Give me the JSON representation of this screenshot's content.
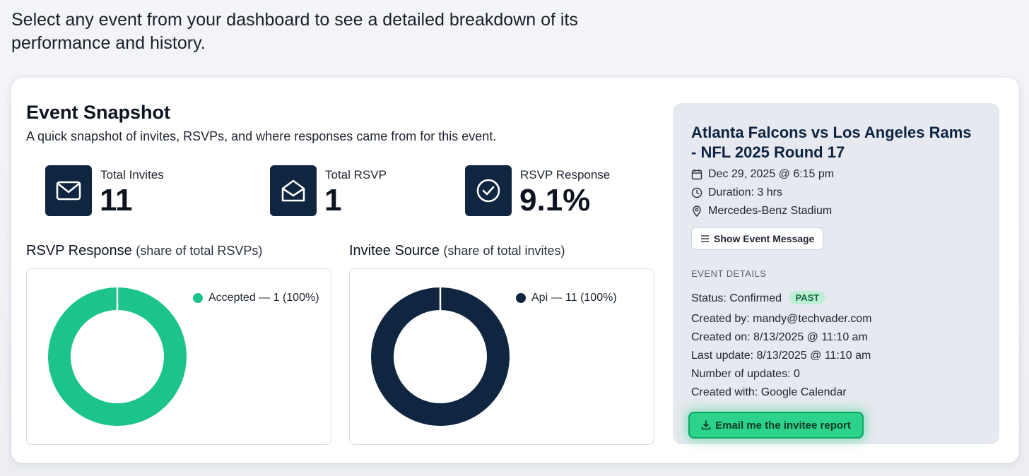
{
  "intro_text": "Select any event from your dashboard to see a detailed breakdown of its performance and history.",
  "snapshot": {
    "title": "Event Snapshot",
    "subtitle": "A quick snapshot of invites, RSVPs, and where responses came from for this event.",
    "stats": [
      {
        "label": "Total Invites",
        "value": "11",
        "icon": "mail-icon"
      },
      {
        "label": "Total RSVP",
        "value": "1",
        "icon": "open-mail-icon"
      },
      {
        "label": "RSVP Response",
        "value": "9.1%",
        "icon": "check-circle-icon"
      }
    ]
  },
  "charts": {
    "rsvp": {
      "title": "RSVP Response",
      "subtitle": "(share of total RSVPs)"
    },
    "source": {
      "title": "Invitee Source",
      "subtitle": "(share of total invites)"
    }
  },
  "chart_data": [
    {
      "type": "pie",
      "title": "RSVP Response",
      "categories": [
        "Accepted"
      ],
      "values": [
        1
      ],
      "legend": [
        "Accepted — 1 (100%)"
      ],
      "colors": [
        "#1dc489"
      ],
      "legend_position": "top-right"
    },
    {
      "type": "pie",
      "title": "Invitee Source",
      "categories": [
        "Api"
      ],
      "values": [
        11
      ],
      "legend": [
        "Api — 11 (100%)"
      ],
      "colors": [
        "#0f2540"
      ],
      "legend_position": "top-right"
    }
  ],
  "event": {
    "title": "Atlanta Falcons vs Los Angeles Rams - NFL 2025 Round 17",
    "date": "Dec 29, 2025 @ 6:15 pm",
    "duration": "Duration: 3 hrs",
    "location": "Mercedes-Benz Stadium",
    "show_message_label": "Show Event Message",
    "details_heading": "EVENT DETAILS",
    "status": "Status: Confirmed",
    "status_badge": "PAST",
    "created_by": "Created by: mandy@techvader.com",
    "created_on": "Created on: 8/13/2025 @ 11:10 am",
    "last_update": "Last update: 8/13/2025 @ 11:10 am",
    "num_updates": "Number of updates: 0",
    "created_with": "Created with: Google Calendar",
    "email_report_label": "Email me the invitee report"
  },
  "colors": {
    "accent_green": "#2ed38b",
    "navy": "#0f2540",
    "badge_bg": "#bfeed6"
  }
}
